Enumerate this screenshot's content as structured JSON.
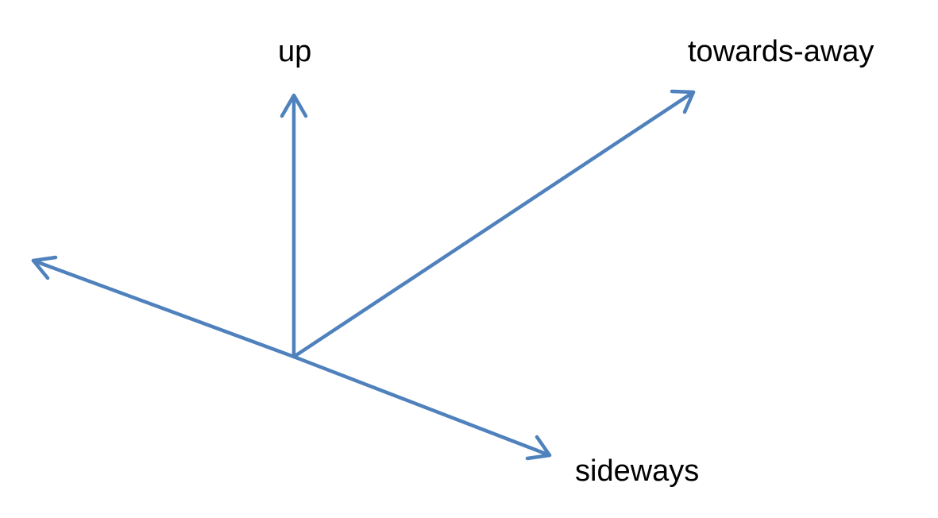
{
  "diagram": {
    "line_color": "#4f81bd",
    "axes": [
      {
        "key": "up",
        "label": "up"
      },
      {
        "key": "towards_away",
        "label": "towards-away"
      },
      {
        "key": "sideways",
        "label": "sideways"
      },
      {
        "key": "left",
        "label": ""
      }
    ]
  }
}
